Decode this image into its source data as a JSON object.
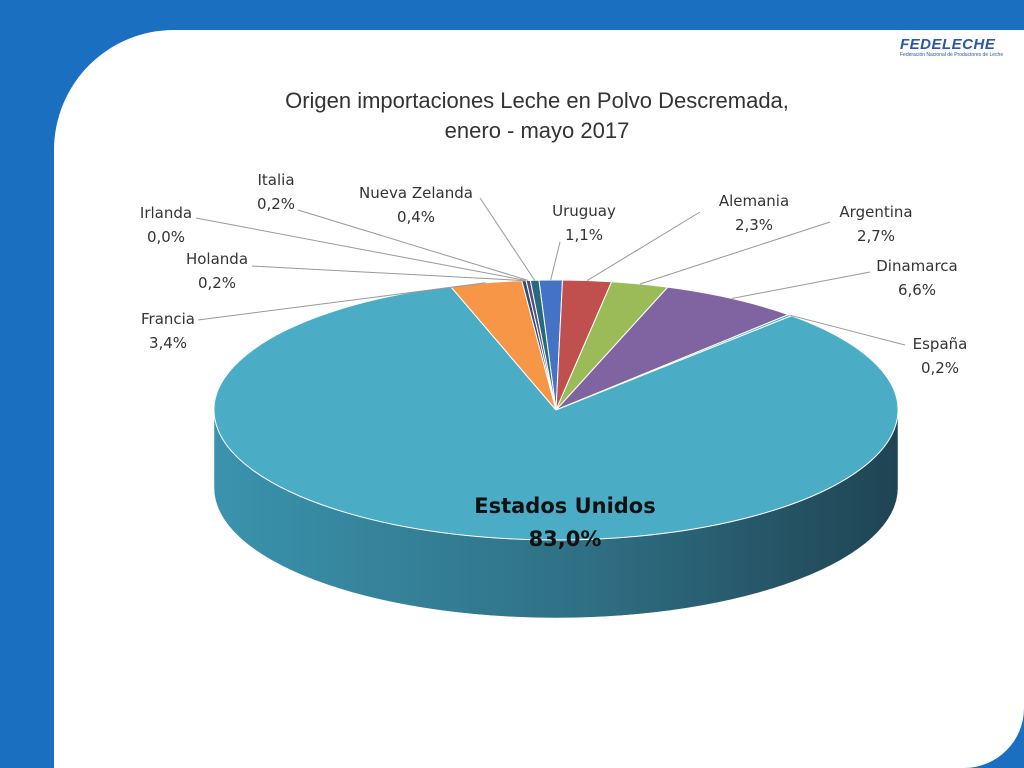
{
  "logo": {
    "text": "FEDELECHE",
    "subtitle": "Federación Nacional de Productores de Leche",
    "primary_color": "#2a55a8"
  },
  "chart_data": {
    "type": "pie",
    "title": [
      "Origen importaciones Leche en Polvo Descremada,",
      "enero - mayo 2017"
    ],
    "categories": [
      "Uruguay",
      "Alemania",
      "Argentina",
      "Dinamarca",
      "España",
      "Estados Unidos",
      "Francia",
      "Holanda",
      "Irlanda",
      "Italia",
      "Nueva Zelanda"
    ],
    "values": [
      1.1,
      2.3,
      2.7,
      6.6,
      0.2,
      83.0,
      3.4,
      0.2,
      0.0,
      0.2,
      0.4
    ],
    "labels": [
      "1,1%",
      "2,3%",
      "2,7%",
      "6,6%",
      "0,2%",
      "83,0%",
      "3,4%",
      "0,2%",
      "0,0%",
      "0,2%",
      "0,4%"
    ],
    "colors": [
      "#4472c4",
      "#c0504d",
      "#9bbb59",
      "#8064a2",
      "#4bacc6",
      "#4bacc6",
      "#f79646",
      "#2c4d75",
      "#772c2a",
      "#5f4a7b",
      "#276a7c"
    ],
    "unit": "%",
    "style": "3d"
  }
}
